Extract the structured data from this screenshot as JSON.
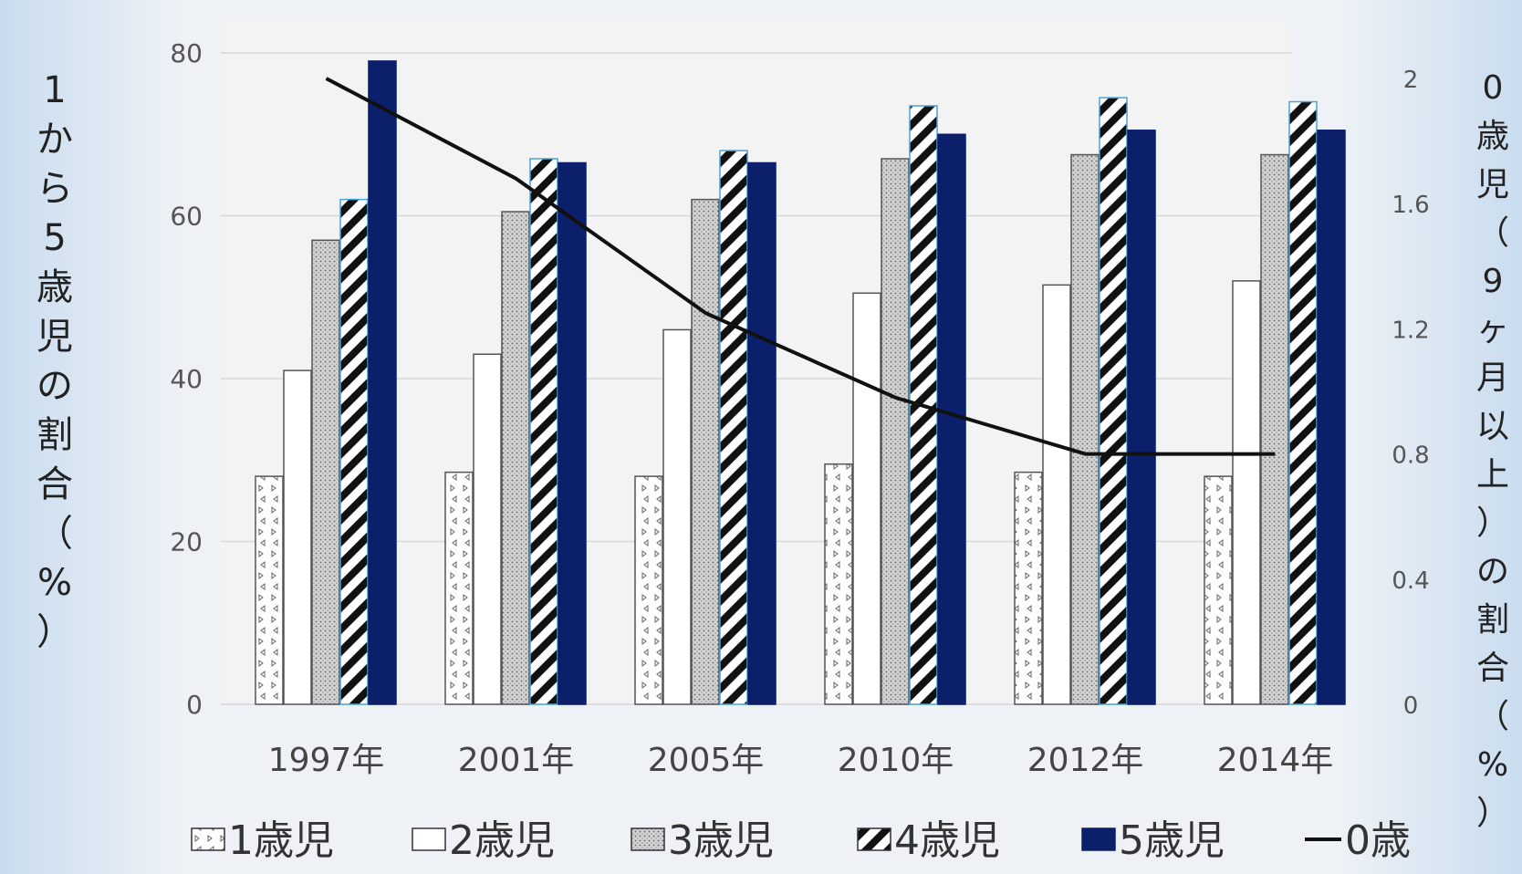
{
  "chart_data": {
    "type": "bar",
    "categories": [
      "1997年",
      "2001年",
      "2005年",
      "2010年",
      "2012年",
      "2014年"
    ],
    "series": [
      {
        "name": "1歳児",
        "values": [
          28,
          28.5,
          28,
          29.5,
          28.5,
          28
        ],
        "pattern": "triangles",
        "axis": "left"
      },
      {
        "name": "2歳児",
        "values": [
          41,
          43,
          46,
          50.5,
          51.5,
          52
        ],
        "pattern": "plain",
        "axis": "left"
      },
      {
        "name": "3歳児",
        "values": [
          57,
          60.5,
          62,
          67,
          67.5,
          67.5
        ],
        "pattern": "dots",
        "axis": "left"
      },
      {
        "name": "4歳児",
        "values": [
          62,
          67,
          68,
          73.5,
          74.5,
          74
        ],
        "pattern": "stripes",
        "axis": "left"
      },
      {
        "name": "5歳児",
        "values": [
          79,
          66.5,
          66.5,
          70,
          70.5,
          70.5
        ],
        "pattern": "solid",
        "axis": "left"
      }
    ],
    "line_series": {
      "name": "0歳",
      "values": [
        2.0,
        1.68,
        1.25,
        0.98,
        0.8,
        0.8
      ],
      "axis": "right"
    },
    "left_axis": {
      "label": "1から5歳児の割合（%）",
      "range": [
        0,
        80
      ],
      "ticks": [
        0,
        20,
        40,
        60,
        80
      ]
    },
    "right_axis": {
      "label": "0歳児（9ヶ月以上）の割合（%）",
      "range": [
        0,
        2
      ],
      "ticks": [
        0,
        0.4,
        0.8,
        1.2,
        1.6,
        2
      ]
    },
    "grid": true,
    "legend_position": "bottom",
    "colors": {
      "bar_outline": "#222222",
      "solid_bar": "#0b1f6b",
      "line": "#111111",
      "plot_bg": "#f3f3f3",
      "gridline": "#d8d8d8"
    }
  }
}
